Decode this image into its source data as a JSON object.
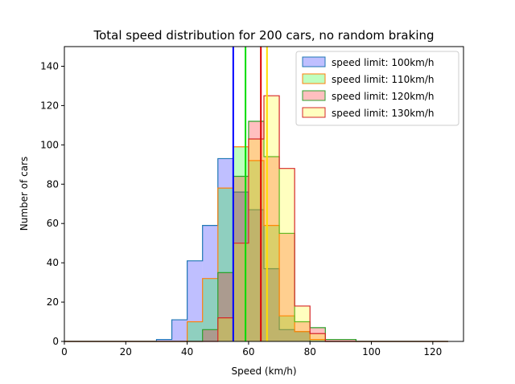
{
  "chart_data": {
    "type": "histogram",
    "title": "Total speed distribution for 200 cars, no random braking",
    "xlabel": "Speed (km/h)",
    "ylabel": "Number of cars",
    "xlim": [
      0,
      130
    ],
    "ylim": [
      0,
      150
    ],
    "xticks": [
      0,
      20,
      40,
      60,
      80,
      100,
      120
    ],
    "yticks": [
      0,
      20,
      40,
      60,
      80,
      100,
      120,
      140
    ],
    "bin_edges": [
      0,
      5,
      10,
      15,
      20,
      25,
      30,
      35,
      40,
      45,
      50,
      55,
      60,
      65,
      70,
      75,
      80,
      85,
      90,
      95,
      100,
      105,
      110,
      115,
      120,
      125
    ],
    "legend_position": "top-right",
    "series": [
      {
        "name": "speed limit: 100km/h",
        "fill": "#0000ff",
        "fill_opacity": 0.25,
        "edge": "#1f77b4",
        "counts": [
          0,
          0,
          0,
          0,
          0,
          0,
          1,
          11,
          41,
          59,
          93,
          76,
          67,
          37,
          6,
          5,
          0,
          0,
          0,
          0,
          0,
          0,
          0,
          0,
          0
        ],
        "mean_line": 55,
        "mean_color": "#0000ff"
      },
      {
        "name": "speed limit: 110km/h",
        "fill": "#00ff00",
        "fill_opacity": 0.25,
        "edge": "#ff7f0e",
        "counts": [
          0,
          0,
          0,
          0,
          0,
          0,
          0,
          0,
          10,
          32,
          78,
          99,
          92,
          59,
          13,
          5,
          1,
          0,
          0,
          0,
          0,
          0,
          0,
          0,
          0
        ],
        "mean_line": 59,
        "mean_color": "#00dd00"
      },
      {
        "name": "speed limit: 120km/h",
        "fill": "#ff0000",
        "fill_opacity": 0.25,
        "edge": "#2ca02c",
        "counts": [
          0,
          0,
          0,
          0,
          0,
          0,
          0,
          0,
          0,
          6,
          35,
          84,
          112,
          94,
          55,
          10,
          7,
          1,
          1,
          0,
          0,
          0,
          0,
          0,
          0
        ],
        "mean_line": 64,
        "mean_color": "#dd0000"
      },
      {
        "name": "speed limit: 130km/h",
        "fill": "#ffff00",
        "fill_opacity": 0.25,
        "edge": "#d62728",
        "counts": [
          0,
          0,
          0,
          0,
          0,
          0,
          0,
          0,
          0,
          0,
          12,
          50,
          103,
          125,
          88,
          18,
          4,
          0,
          0,
          0,
          0,
          0,
          0,
          0,
          0
        ],
        "mean_line": 66,
        "mean_color": "#ffdd00"
      }
    ]
  }
}
